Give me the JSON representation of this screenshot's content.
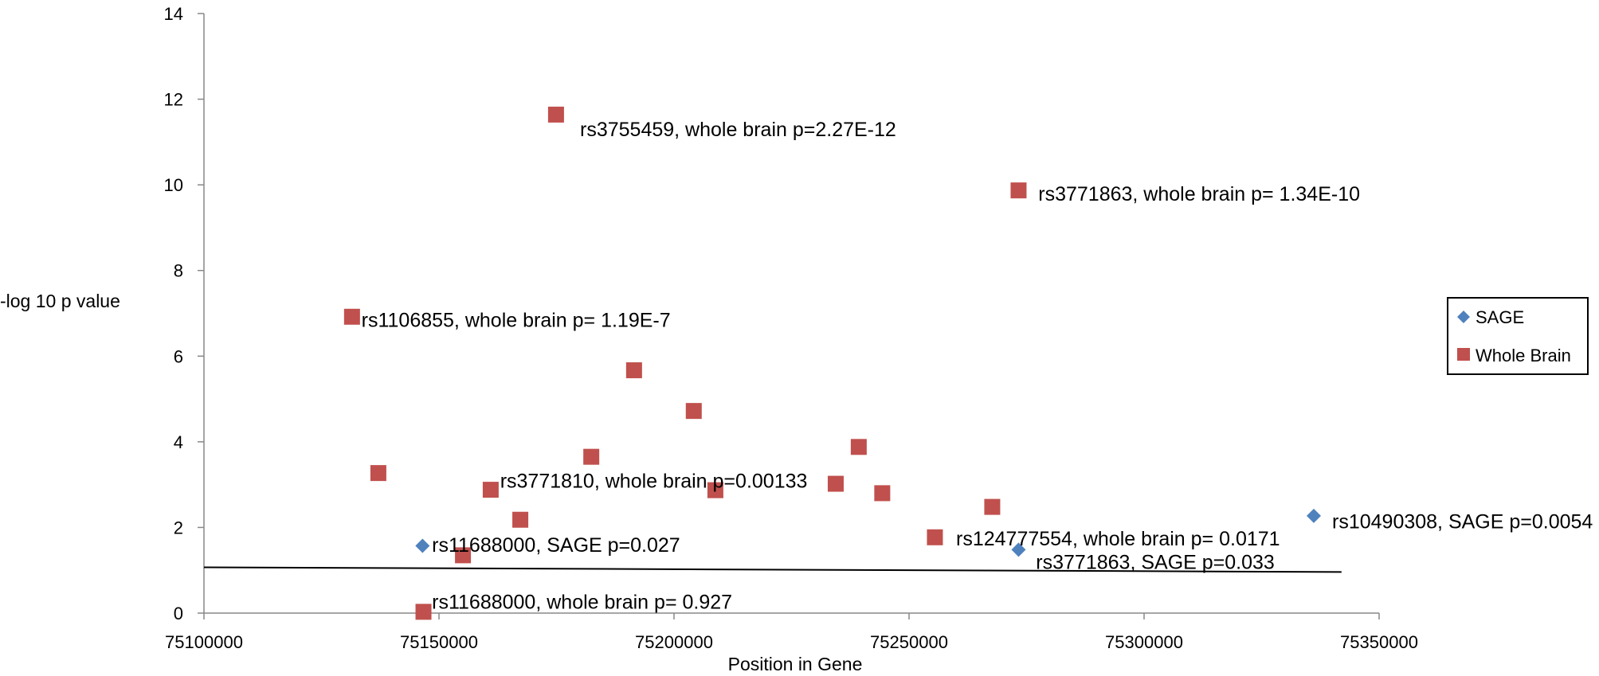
{
  "chart_data": {
    "type": "scatter",
    "xlabel": "Position in Gene",
    "ylabel": "-log 10 p value",
    "xlim": [
      75100000,
      75350000
    ],
    "ylim": [
      0,
      14
    ],
    "x_ticks": [
      "75100000",
      "75150000",
      "75200000",
      "75250000",
      "75300000",
      "75350000"
    ],
    "y_ticks": [
      "0",
      "2",
      "4",
      "6",
      "8",
      "10",
      "12",
      "14"
    ],
    "grid": false,
    "legend_position": "right",
    "series": [
      {
        "name": "SAGE",
        "marker": "diamond",
        "color": "#4F81BD",
        "points": [
          {
            "x": 75146500,
            "y": 1.57
          },
          {
            "x": 75273300,
            "y": 1.48
          },
          {
            "x": 75336100,
            "y": 2.27
          }
        ]
      },
      {
        "name": "Whole Brain",
        "marker": "square",
        "color": "#C0504D",
        "points": [
          {
            "x": 75131500,
            "y": 6.92
          },
          {
            "x": 75137100,
            "y": 3.27
          },
          {
            "x": 75146700,
            "y": 0.03
          },
          {
            "x": 75155100,
            "y": 1.35
          },
          {
            "x": 75161000,
            "y": 2.88
          },
          {
            "x": 75167300,
            "y": 2.18
          },
          {
            "x": 75174900,
            "y": 11.64
          },
          {
            "x": 75182400,
            "y": 3.65
          },
          {
            "x": 75191500,
            "y": 5.67
          },
          {
            "x": 75204200,
            "y": 4.72
          },
          {
            "x": 75208800,
            "y": 2.87
          },
          {
            "x": 75234400,
            "y": 3.02
          },
          {
            "x": 75239300,
            "y": 3.88
          },
          {
            "x": 75244300,
            "y": 2.8
          },
          {
            "x": 75255500,
            "y": 1.77
          },
          {
            "x": 75267700,
            "y": 2.48
          },
          {
            "x": 75273300,
            "y": 9.87
          }
        ]
      }
    ],
    "threshold_line": {
      "x": [
        75100000,
        75342000
      ],
      "y": [
        1.07,
        0.96
      ]
    },
    "annotations": [
      {
        "text": "rs3755459, whole brain p=2.27E-12",
        "x": 75180000,
        "y": 11.3
      },
      {
        "text": "rs3771863, whole brain p= 1.34E-10",
        "x": 75277500,
        "y": 9.8
      },
      {
        "text": "rs1106855, whole brain p= 1.19E-7",
        "x": 75133500,
        "y": 6.85
      },
      {
        "text": "rs3771810, whole brain p=0.00133",
        "x": 75163000,
        "y": 3.1
      },
      {
        "text": "rs11688000, SAGE p=0.027",
        "x": 75148500,
        "y": 1.6
      },
      {
        "text": "rs124777554, whole brain p= 0.0171",
        "x": 75260000,
        "y": 1.75
      },
      {
        "text": "rs3771863, SAGE p=0.033",
        "x": 75277000,
        "y": 1.2
      },
      {
        "text": "rs10490308, SAGE p=0.0054",
        "x": 75340000,
        "y": 2.15
      },
      {
        "text": "rs11688000, whole brain p= 0.927",
        "x": 75148500,
        "y": 0.27
      }
    ]
  }
}
